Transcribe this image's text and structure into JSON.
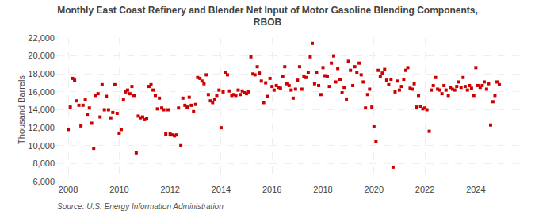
{
  "chart_data": {
    "type": "scatter",
    "title": "Monthly East Coast Refinery and Blender Net Input of Motor Gasoline Blending Components,\nRBOB",
    "ylabel": "Thousand Barrels",
    "annotations": [
      "Source: U.S. Energy Information Administration"
    ],
    "color": "#cc0000",
    "marker": "square",
    "grid": true,
    "xlim": [
      2007.5,
      2025.7
    ],
    "xticks": [
      2008,
      2010,
      2012,
      2014,
      2016,
      2018,
      2020,
      2022,
      2024
    ],
    "ylim": [
      6000,
      22000
    ],
    "yticks": [
      {
        "value": 6000,
        "label": "6,000"
      },
      {
        "value": 8000,
        "label": "8,000"
      },
      {
        "value": 10000,
        "label": "10,000"
      },
      {
        "value": 12000,
        "label": "12,000"
      },
      {
        "value": 14000,
        "label": "14,000"
      },
      {
        "value": 16000,
        "label": "16,000"
      },
      {
        "value": 18000,
        "label": "18,000"
      },
      {
        "value": 20000,
        "label": "20,000"
      },
      {
        "value": 22000,
        "label": "22,000"
      }
    ],
    "x": [
      2008.0,
      2008.08,
      2008.17,
      2008.25,
      2008.33,
      2008.42,
      2008.5,
      2008.58,
      2008.67,
      2008.75,
      2008.83,
      2008.92,
      2009.0,
      2009.08,
      2009.17,
      2009.25,
      2009.33,
      2009.42,
      2009.5,
      2009.58,
      2009.67,
      2009.75,
      2009.83,
      2009.92,
      2010.0,
      2010.08,
      2010.17,
      2010.25,
      2010.33,
      2010.42,
      2010.5,
      2010.58,
      2010.67,
      2010.75,
      2010.83,
      2010.92,
      2011.0,
      2011.08,
      2011.17,
      2011.25,
      2011.33,
      2011.42,
      2011.5,
      2011.58,
      2011.67,
      2011.75,
      2011.83,
      2011.92,
      2012.0,
      2012.08,
      2012.17,
      2012.25,
      2012.33,
      2012.42,
      2012.5,
      2012.58,
      2012.67,
      2012.75,
      2012.83,
      2012.92,
      2013.0,
      2013.08,
      2013.17,
      2013.25,
      2013.33,
      2013.42,
      2013.5,
      2013.58,
      2013.67,
      2013.75,
      2013.83,
      2013.92,
      2014.0,
      2014.08,
      2014.17,
      2014.25,
      2014.33,
      2014.42,
      2014.5,
      2014.58,
      2014.67,
      2014.75,
      2014.83,
      2014.92,
      2015.0,
      2015.08,
      2015.17,
      2015.25,
      2015.33,
      2015.42,
      2015.5,
      2015.58,
      2015.67,
      2015.75,
      2015.83,
      2015.92,
      2016.0,
      2016.08,
      2016.17,
      2016.25,
      2016.33,
      2016.42,
      2016.5,
      2016.58,
      2016.67,
      2016.75,
      2016.83,
      2016.92,
      2017.0,
      2017.08,
      2017.17,
      2017.25,
      2017.33,
      2017.42,
      2017.5,
      2017.58,
      2017.67,
      2017.75,
      2017.83,
      2017.92,
      2018.0,
      2018.08,
      2018.17,
      2018.25,
      2018.33,
      2018.42,
      2018.5,
      2018.58,
      2018.67,
      2018.75,
      2018.83,
      2018.92,
      2019.0,
      2019.08,
      2019.17,
      2019.25,
      2019.33,
      2019.42,
      2019.5,
      2019.58,
      2019.67,
      2019.75,
      2019.83,
      2019.92,
      2020.0,
      2020.08,
      2020.17,
      2020.25,
      2020.33,
      2020.42,
      2020.5,
      2020.58,
      2020.67,
      2020.75,
      2020.83,
      2020.92,
      2021.0,
      2021.08,
      2021.17,
      2021.25,
      2021.33,
      2021.42,
      2021.5,
      2021.58,
      2021.67,
      2021.75,
      2021.83,
      2021.92,
      2022.0,
      2022.08,
      2022.17,
      2022.25,
      2022.33,
      2022.42,
      2022.5,
      2022.58,
      2022.67,
      2022.75,
      2022.83,
      2022.92,
      2023.0,
      2023.08,
      2023.17,
      2023.25,
      2023.33,
      2023.42,
      2023.5,
      2023.58,
      2023.67,
      2023.75,
      2023.83,
      2023.92,
      2024.0,
      2024.08,
      2024.17,
      2024.25,
      2024.33,
      2024.42,
      2024.5,
      2024.58,
      2024.67,
      2024.75,
      2024.83,
      2024.92
    ],
    "values": [
      11800,
      14300,
      17500,
      17300,
      15000,
      14500,
      12200,
      14500,
      15100,
      13500,
      14200,
      12500,
      9700,
      15600,
      15800,
      13200,
      16800,
      14000,
      15500,
      14000,
      13100,
      13700,
      16800,
      13600,
      11400,
      11800,
      15100,
      16000,
      16200,
      15800,
      16600,
      15600,
      9200,
      13300,
      13100,
      13200,
      12900,
      13000,
      16600,
      16800,
      16200,
      15600,
      14100,
      15300,
      14200,
      14000,
      11300,
      14000,
      11300,
      11200,
      11100,
      11200,
      14200,
      10000,
      15300,
      14500,
      14300,
      15400,
      14500,
      13800,
      14600,
      17600,
      17500,
      17200,
      16900,
      17900,
      15700,
      15000,
      14800,
      15200,
      15600,
      16200,
      12000,
      16000,
      18200,
      17900,
      16100,
      15600,
      15700,
      15600,
      16200,
      15700,
      16100,
      15900,
      15800,
      16000,
      19900,
      18000,
      17900,
      18800,
      18100,
      17200,
      14800,
      17000,
      15500,
      17500,
      16600,
      16200,
      16700,
      16500,
      16400,
      17700,
      18800,
      16900,
      16700,
      16200,
      15300,
      16300,
      17300,
      18800,
      16300,
      17700,
      17600,
      18200,
      19900,
      21400,
      16900,
      18200,
      16700,
      15700,
      18700,
      17800,
      17700,
      16600,
      19200,
      20000,
      17100,
      18600,
      17400,
      15900,
      16500,
      15200,
      19400,
      18400,
      16700,
      18800,
      18200,
      19200,
      17900,
      17100,
      14200,
      15700,
      16300,
      14300,
      12100,
      10500,
      18400,
      17700,
      18100,
      18500,
      17300,
      16800,
      17400,
      7600,
      16000,
      17200,
      16200,
      16600,
      17400,
      18400,
      18700,
      16400,
      16300,
      16900,
      14300,
      15600,
      14400,
      14100,
      14200,
      14000,
      11600,
      16200,
      16700,
      17600,
      16300,
      16200,
      15800,
      16700,
      16200,
      15600,
      16500,
      16300,
      16200,
      16600,
      17100,
      16500,
      17600,
      16600,
      16200,
      16700,
      16400,
      15600,
      18700,
      16700,
      16500,
      16700,
      17100,
      16300,
      16900,
      12300,
      14900,
      15600,
      17100,
      16800
    ]
  }
}
